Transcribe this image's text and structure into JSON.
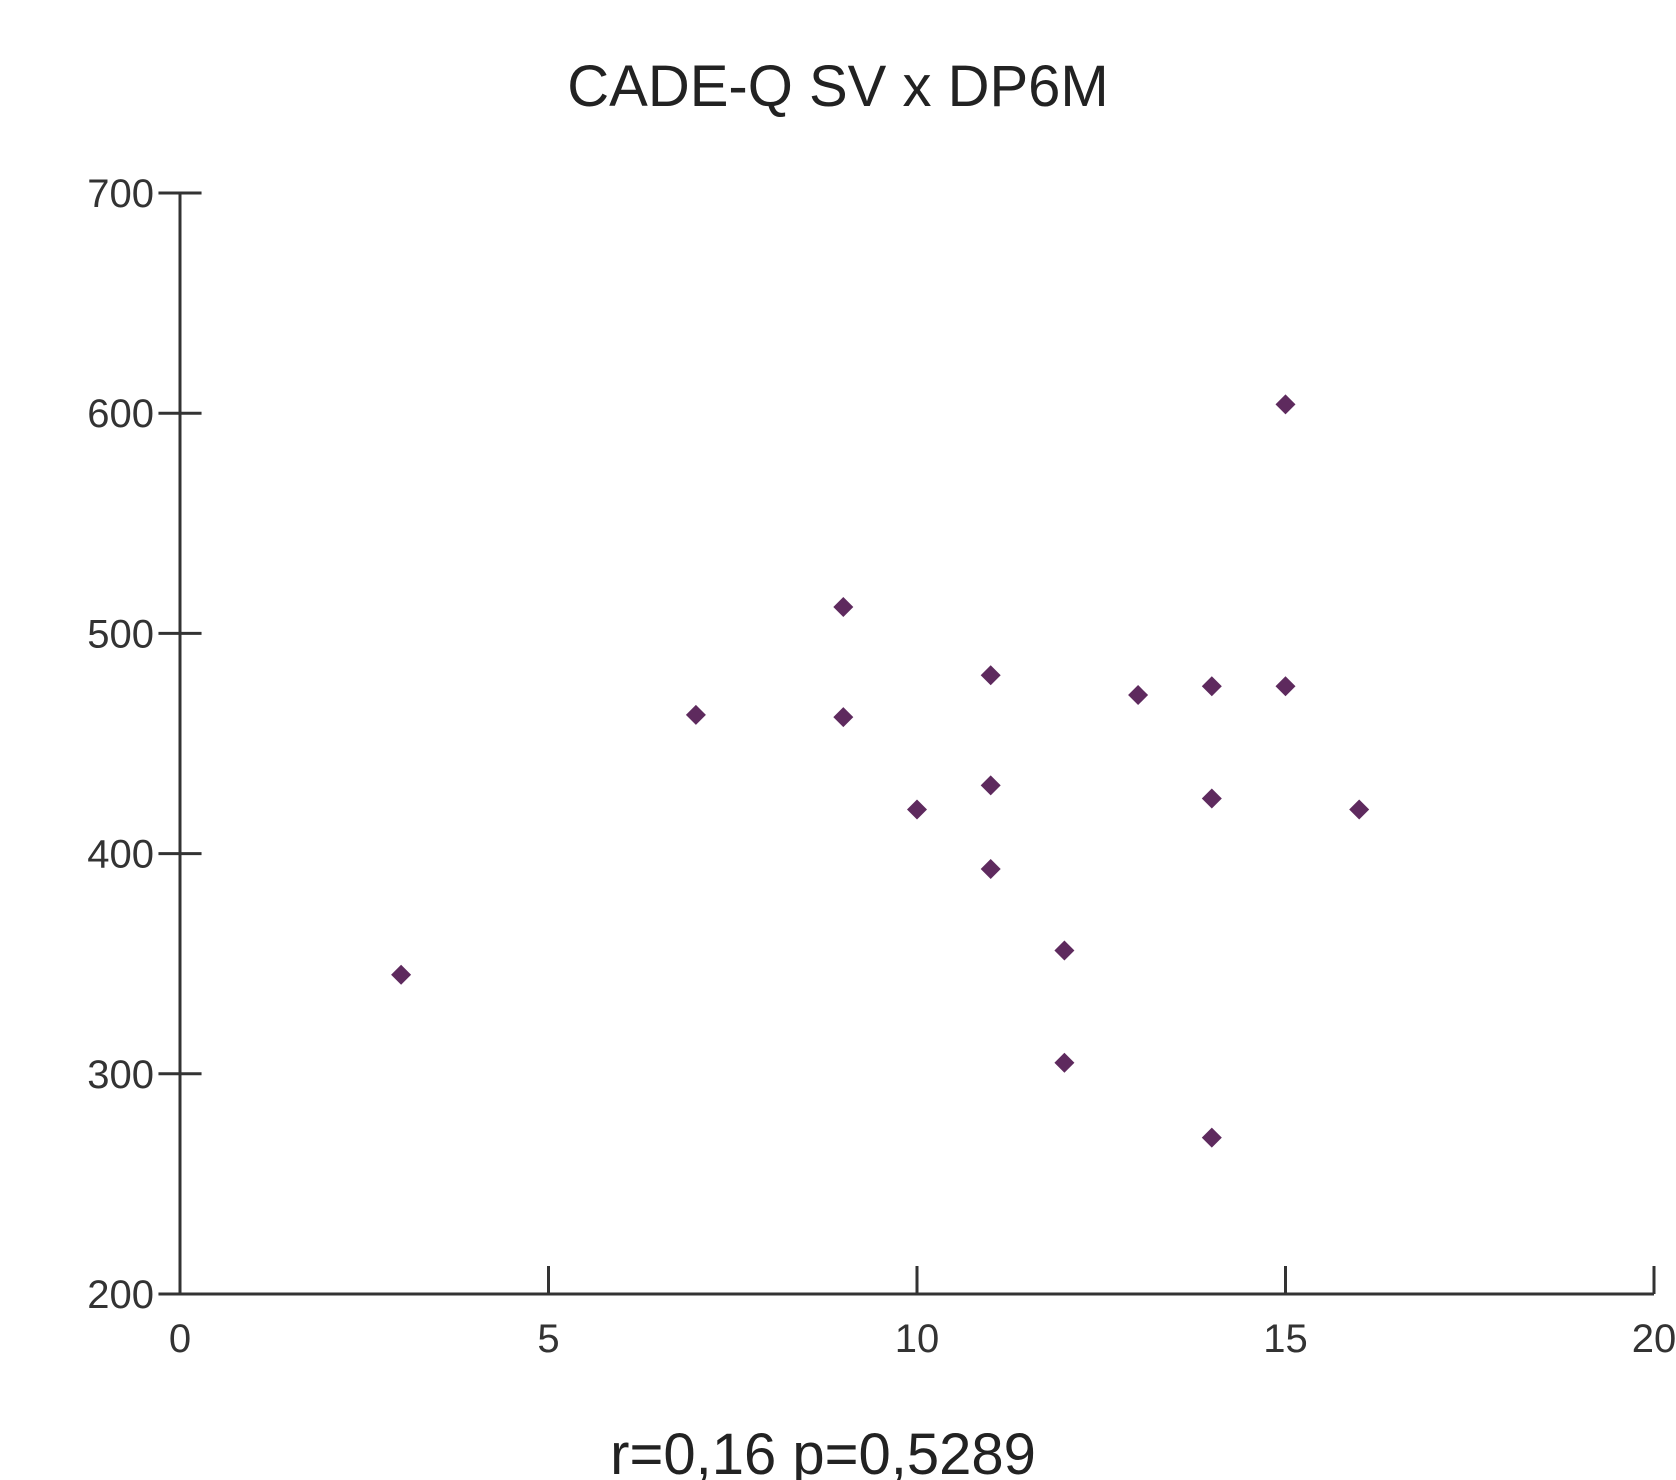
{
  "chart_data": {
    "type": "scatter",
    "title": "CADE-Q SV x DP6M",
    "xlabel": "",
    "ylabel": "",
    "annotation": "r=0,16 p=0,5289",
    "xlim": [
      0,
      20
    ],
    "ylim": [
      200,
      700
    ],
    "x_ticks": [
      0,
      5,
      10,
      15,
      20
    ],
    "y_ticks": [
      200,
      300,
      400,
      500,
      600,
      700
    ],
    "x_tick_labels": [
      "0",
      "5",
      "10",
      "15",
      "20"
    ],
    "y_tick_labels": [
      "200",
      "300",
      "400",
      "500",
      "600",
      "700"
    ],
    "grid": false,
    "legend": "none",
    "marker": "diamond",
    "marker_color": "#5e2a5e",
    "axis_color": "#333333",
    "series": [
      {
        "points": [
          {
            "x": 3,
            "y": 345
          },
          {
            "x": 7,
            "y": 463
          },
          {
            "x": 9,
            "y": 512
          },
          {
            "x": 9,
            "y": 462
          },
          {
            "x": 10,
            "y": 420
          },
          {
            "x": 11,
            "y": 481
          },
          {
            "x": 11,
            "y": 431
          },
          {
            "x": 11,
            "y": 393
          },
          {
            "x": 12,
            "y": 356
          },
          {
            "x": 12,
            "y": 305
          },
          {
            "x": 13,
            "y": 472
          },
          {
            "x": 14,
            "y": 476
          },
          {
            "x": 14,
            "y": 425
          },
          {
            "x": 14,
            "y": 271
          },
          {
            "x": 15,
            "y": 604
          },
          {
            "x": 15,
            "y": 476
          },
          {
            "x": 16,
            "y": 420
          }
        ]
      }
    ]
  }
}
